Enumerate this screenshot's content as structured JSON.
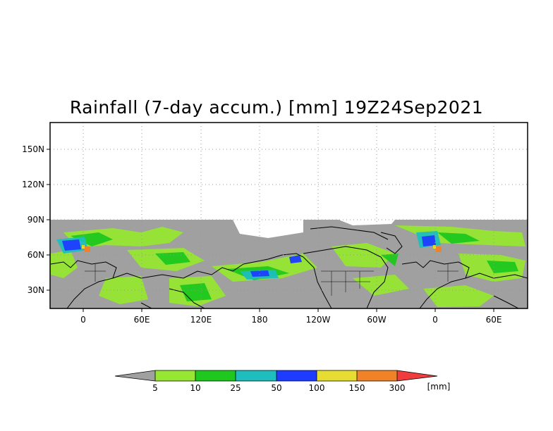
{
  "title": "Rainfall (7-day accum.) [mm] 19Z24Sep2021",
  "y_ticks": [
    "150N",
    "120N",
    "90N",
    "60N",
    "30N"
  ],
  "x_ticks": [
    "0",
    "60E",
    "120E",
    "180",
    "120W",
    "60W",
    "0",
    "60E"
  ],
  "colorbar": {
    "unit": "[mm]",
    "labels": [
      "5",
      "10",
      "25",
      "50",
      "100",
      "150",
      "300"
    ],
    "colors": [
      "#a0a0a0",
      "#96e632",
      "#1ec81e",
      "#1ebebe",
      "#1e3cff",
      "#e6dc32",
      "#f08228",
      "#f03c3c"
    ]
  },
  "colors": {
    "no_data": "#a0a0a0",
    "coastline": "#000000",
    "grid": "#999999"
  }
}
